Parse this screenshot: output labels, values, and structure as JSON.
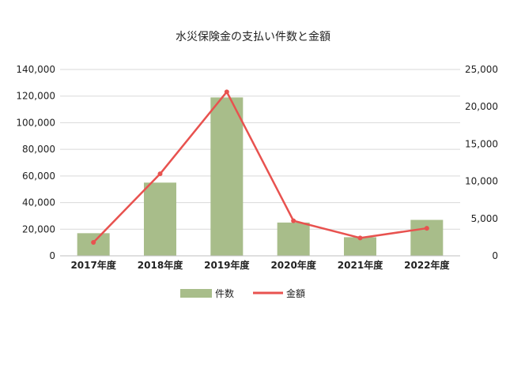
{
  "colors": {
    "bar": "#a8bd8a",
    "line": "#e8524f",
    "grid": "#d9d9d9",
    "axis": "#bfbfbf",
    "text": "#222222"
  },
  "chart_data": {
    "type": "bar",
    "title": "水災保険金の支払い件数と金額",
    "categories": [
      "2017年度",
      "2018年度",
      "2019年度",
      "2020年度",
      "2021年度",
      "2022年度"
    ],
    "series": [
      {
        "name": "件数",
        "type": "bar",
        "axis": "left",
        "values": [
          17000,
          55000,
          119000,
          25000,
          14000,
          27000
        ]
      },
      {
        "name": "金額",
        "type": "line",
        "axis": "right",
        "values": [
          1800,
          11000,
          22000,
          4700,
          2400,
          3700
        ]
      }
    ],
    "y_left": {
      "ylim": [
        0,
        140000
      ],
      "ticks": [
        "0",
        "20,000",
        "40,000",
        "60,000",
        "80,000",
        "100,000",
        "120,000",
        "140,000"
      ]
    },
    "y_right": {
      "ylim": [
        0,
        25000
      ],
      "ticks": [
        "0",
        "5,000",
        "10,000",
        "15,000",
        "20,000",
        "25,000"
      ]
    },
    "grid": true,
    "legend_position": "bottom"
  }
}
